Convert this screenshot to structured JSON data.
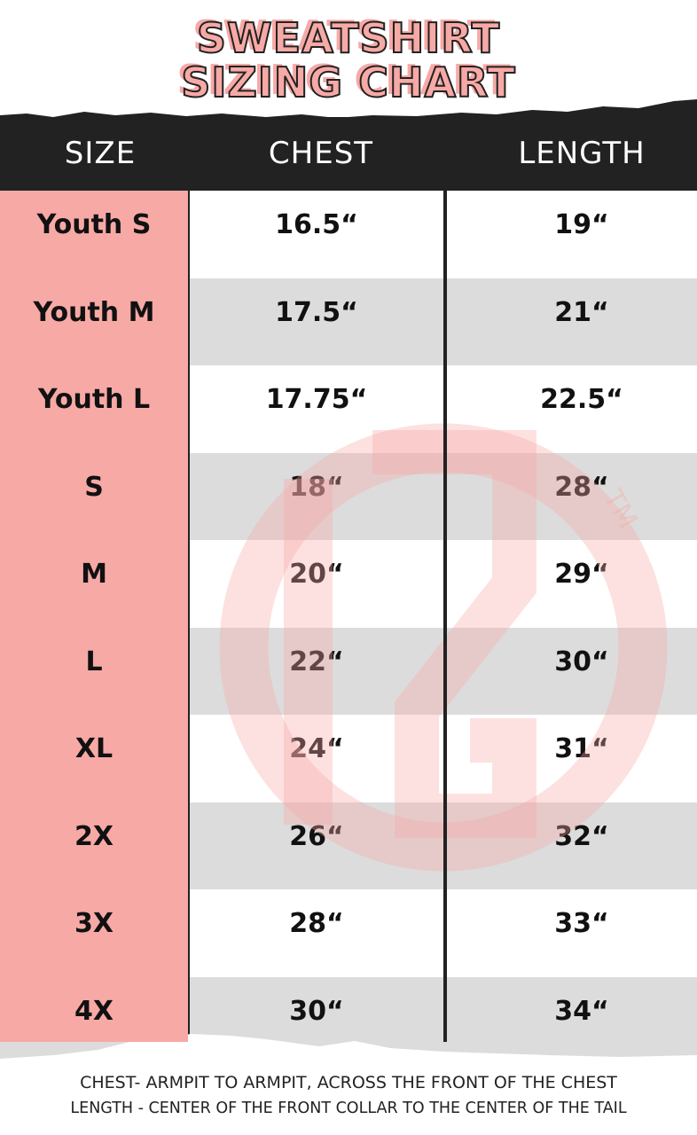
{
  "title": {
    "line1": "SWEATSHIRT",
    "line2": "SIZING CHART"
  },
  "colors": {
    "accent": "#f7a9a6",
    "header_bg": "#222222",
    "stripe": "#dcdcdc"
  },
  "table": {
    "headers": [
      "SIZE",
      "CHEST",
      "LENGTH"
    ],
    "rows": [
      [
        "Youth S",
        "16.5“",
        "19“"
      ],
      [
        "Youth M",
        "17.5“",
        "21“"
      ],
      [
        "Youth L",
        "17.75“",
        "22.5“"
      ],
      [
        "S",
        "18“",
        "28“"
      ],
      [
        "M",
        "20“",
        "29“"
      ],
      [
        "L",
        "22“",
        "30“"
      ],
      [
        "XL",
        "24“",
        "31“"
      ],
      [
        "2X",
        "26“",
        "32“"
      ],
      [
        "3X",
        "28“",
        "33“"
      ],
      [
        "4X",
        "30“",
        "34“"
      ]
    ]
  },
  "watermark": {
    "icon": "brand-logo-monogram",
    "text": "TM"
  },
  "footer": {
    "line1": "CHEST- ARMPIT TO ARMPIT, ACROSS THE FRONT OF THE CHEST",
    "line2": "LENGTH - CENTER OF THE FRONT COLLAR TO THE CENTER OF THE TAIL"
  }
}
